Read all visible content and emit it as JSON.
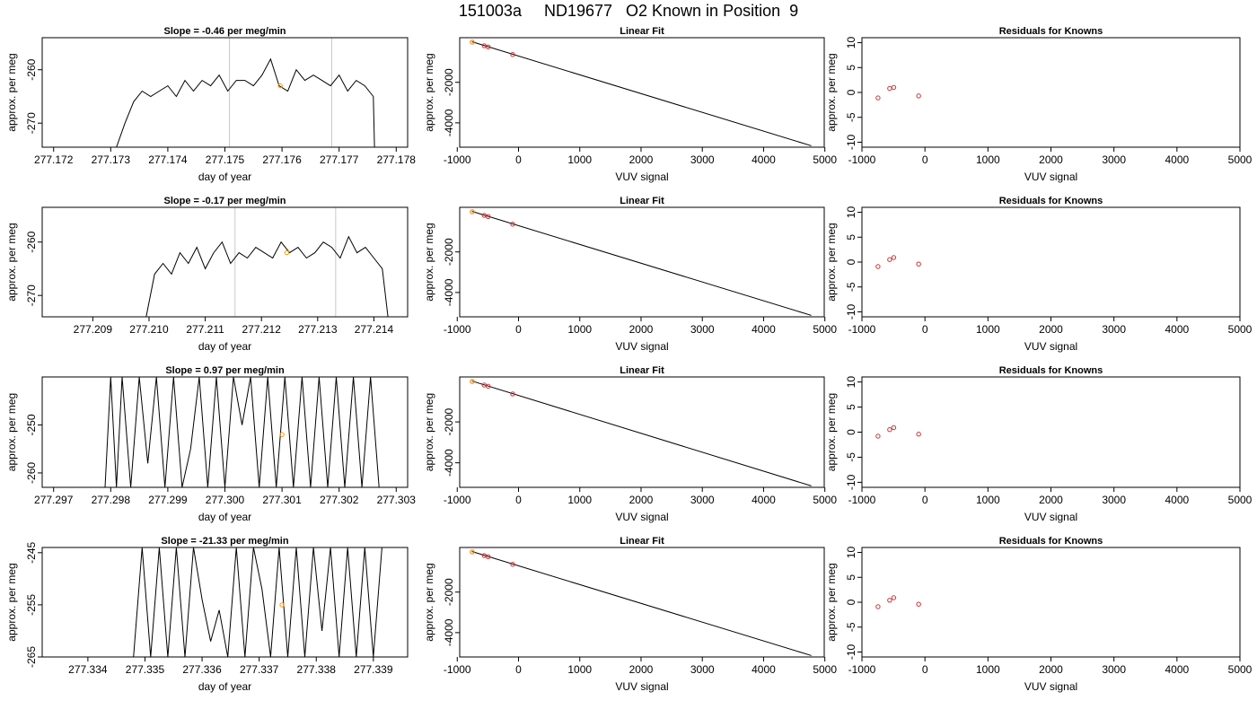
{
  "figure_title": "151003a     ND19677   O2 Known in Position  9",
  "colors": {
    "trace": "#000000",
    "gridline": "#c8c8c8",
    "point": "#cc3333",
    "highlight": "#ff9900"
  },
  "chart_data": [
    {
      "type": "line",
      "row": 1,
      "col": 1,
      "title": "Slope =  -0.46  per meg/min",
      "xlabel": "day of year",
      "ylabel": "approx. per meg",
      "xlim": [
        277.1718,
        277.1782
      ],
      "ylim": [
        -274.5,
        -254
      ],
      "xticks": [
        277.172,
        277.173,
        277.174,
        277.175,
        277.176,
        277.177,
        277.178
      ],
      "xtick_labels": [
        "277.172",
        "277.173",
        "277.174",
        "277.175",
        "277.176",
        "277.177",
        "277.178"
      ],
      "yticks": [
        -260,
        -270
      ],
      "ytick_labels": [
        "-260",
        "-270"
      ],
      "vlines": [
        277.17508,
        277.17687
      ],
      "highlight_point": {
        "x": 277.17597,
        "y": -263
      },
      "series": [
        {
          "x": [
            277.1731,
            277.17325,
            277.1734,
            277.17355,
            277.1737,
            277.17385,
            277.174,
            277.17415,
            277.1743,
            277.17445,
            277.1746,
            277.17475,
            277.1749,
            277.17505,
            277.1752,
            277.17535,
            277.1755,
            277.17565,
            277.1758,
            277.17595,
            277.1761,
            277.17625,
            277.1764,
            277.17655,
            277.1767,
            277.17685,
            277.177,
            277.17715,
            277.1773,
            277.17745,
            277.1776,
            277.17762
          ],
          "y": [
            -274.5,
            -270,
            -266,
            -264,
            -265,
            -264,
            -263,
            -265,
            -262,
            -264,
            -262,
            -263,
            -261,
            -264,
            -262,
            -262,
            -263,
            -261,
            -258,
            -263,
            -264,
            -260,
            -262,
            -261,
            -262,
            -263,
            -261,
            -264,
            -262,
            -263,
            -265,
            -274.5
          ]
        }
      ]
    },
    {
      "type": "line",
      "row": 1,
      "col": 2,
      "title": "Linear Fit",
      "xlabel": "VUV signal",
      "ylabel": "approx. per meg",
      "xlim": [
        -960,
        4990
      ],
      "ylim": [
        -5200,
        200
      ],
      "xticks": [
        -1000,
        0,
        1000,
        2000,
        3000,
        4000,
        5000
      ],
      "xtick_labels": [
        "-1000",
        "0",
        "1000",
        "2000",
        "3000",
        "4000",
        "5000"
      ],
      "yticks": [
        -2000,
        -4000
      ],
      "ytick_labels": [
        "-2000",
        "-4000"
      ],
      "fit_line": {
        "x": [
          -760,
          4780
        ],
        "y": [
          0,
          -5130
        ]
      },
      "points": {
        "x": [
          -755,
          -560,
          -495,
          -95
        ],
        "y": [
          -20,
          -195,
          -255,
          -630
        ]
      },
      "highlight_point": {
        "x": -755,
        "y": -20
      }
    },
    {
      "type": "scatter",
      "row": 1,
      "col": 3,
      "title": "Residuals for Knowns",
      "xlabel": "VUV signal",
      "ylabel": "approx. per meg",
      "xlim": [
        -1000,
        5000
      ],
      "ylim": [
        -11,
        11
      ],
      "xticks": [
        -1000,
        0,
        1000,
        2000,
        3000,
        4000,
        5000
      ],
      "xtick_labels": [
        "-1000",
        "0",
        "1000",
        "2000",
        "3000",
        "4000",
        "5000"
      ],
      "yticks": [
        10,
        5,
        0,
        -5,
        -10
      ],
      "ytick_labels": [
        "10",
        "5",
        "0",
        "-5",
        "-10"
      ],
      "points": {
        "x": [
          -745,
          -560,
          -495,
          -100
        ],
        "y": [
          -1.1,
          0.8,
          1.0,
          -0.7
        ]
      }
    },
    {
      "type": "line",
      "row": 2,
      "col": 1,
      "title": "Slope =  -0.17  per meg/min",
      "xlabel": "day of year",
      "ylabel": "approx. per meg",
      "xlim": [
        277.2081,
        277.2146
      ],
      "ylim": [
        -274,
        -253.5
      ],
      "xticks": [
        277.209,
        277.21,
        277.211,
        277.212,
        277.213,
        277.214
      ],
      "xtick_labels": [
        "277.209",
        "277.210",
        "277.211",
        "277.212",
        "277.213",
        "277.214"
      ],
      "yticks": [
        -260,
        -270
      ],
      "ytick_labels": [
        "-260",
        "-270"
      ],
      "vlines": [
        277.21153,
        277.21332
      ],
      "highlight_point": {
        "x": 277.21245,
        "y": -262
      },
      "series": [
        {
          "x": [
            277.20995,
            277.2101,
            277.21025,
            277.2104,
            277.21055,
            277.2107,
            277.21085,
            277.211,
            277.21115,
            277.2113,
            277.21145,
            277.2116,
            277.21175,
            277.2119,
            277.21205,
            277.2122,
            277.21235,
            277.2125,
            277.21265,
            277.2128,
            277.21295,
            277.2131,
            277.21325,
            277.2134,
            277.21355,
            277.2137,
            277.21385,
            277.214,
            277.21415,
            277.21425
          ],
          "y": [
            -274,
            -266,
            -264,
            -266,
            -262,
            -264,
            -261,
            -265,
            -262,
            -260,
            -264,
            -262,
            -263,
            -261,
            -262,
            -263,
            -260,
            -262,
            -261,
            -263,
            -262,
            -260,
            -261,
            -263,
            -259,
            -262,
            -261,
            -263,
            -265,
            -274
          ]
        }
      ]
    },
    {
      "type": "line",
      "row": 2,
      "col": 2,
      "title": "Linear Fit",
      "xlabel": "VUV signal",
      "ylabel": "approx. per meg",
      "xlim": [
        -960,
        4990
      ],
      "ylim": [
        -5200,
        200
      ],
      "xticks": [
        -1000,
        0,
        1000,
        2000,
        3000,
        4000,
        5000
      ],
      "xtick_labels": [
        "-1000",
        "0",
        "1000",
        "2000",
        "3000",
        "4000",
        "5000"
      ],
      "yticks": [
        -2000,
        -4000
      ],
      "ytick_labels": [
        "-2000",
        "-4000"
      ],
      "fit_line": {
        "x": [
          -760,
          4780
        ],
        "y": [
          0,
          -5130
        ]
      },
      "points": {
        "x": [
          -755,
          -560,
          -495,
          -95
        ],
        "y": [
          -20,
          -195,
          -255,
          -630
        ]
      },
      "highlight_point": {
        "x": -755,
        "y": -20
      }
    },
    {
      "type": "scatter",
      "row": 2,
      "col": 3,
      "title": "Residuals for Knowns",
      "xlabel": "VUV signal",
      "ylabel": "approx. per meg",
      "xlim": [
        -1000,
        5000
      ],
      "ylim": [
        -11,
        11
      ],
      "xticks": [
        -1000,
        0,
        1000,
        2000,
        3000,
        4000,
        5000
      ],
      "xtick_labels": [
        "-1000",
        "0",
        "1000",
        "2000",
        "3000",
        "4000",
        "5000"
      ],
      "yticks": [
        10,
        5,
        0,
        -5,
        -10
      ],
      "ytick_labels": [
        "10",
        "5",
        "0",
        "-5",
        "-10"
      ],
      "points": {
        "x": [
          -745,
          -560,
          -495,
          -100
        ],
        "y": [
          -0.9,
          0.5,
          0.9,
          -0.4
        ]
      }
    },
    {
      "type": "line",
      "row": 3,
      "col": 1,
      "title": "Slope =  0.97  per meg/min",
      "xlabel": "day of year",
      "ylabel": "approx. per meg",
      "xlim": [
        277.2968,
        277.3032
      ],
      "ylim": [
        -263,
        -240
      ],
      "xticks": [
        277.297,
        277.298,
        277.299,
        277.3,
        277.301,
        277.302,
        277.303
      ],
      "xtick_labels": [
        "277.297",
        "277.298",
        "277.299",
        "277.300",
        "277.301",
        "277.302",
        "277.303"
      ],
      "yticks": [
        -250,
        -260
      ],
      "ytick_labels": [
        "-250",
        "-260"
      ],
      "highlight_point": {
        "x": 277.301,
        "y": -252
      },
      "series": [
        {
          "x": [
            277.2979,
            277.298,
            277.2981,
            277.2982,
            277.29835,
            277.2985,
            277.29865,
            277.2988,
            277.29895,
            277.2991,
            277.29925,
            277.2994,
            277.29955,
            277.2997,
            277.29985,
            277.3,
            277.30015,
            277.3003,
            277.30045,
            277.3006,
            277.30075,
            277.3009,
            277.30105,
            277.3012,
            277.30135,
            277.3015,
            277.30165,
            277.3018,
            277.30195,
            277.3021,
            277.30225,
            277.3024,
            277.30255,
            277.3027
          ],
          "y": [
            -263,
            -240,
            -263,
            -240,
            -263,
            -240,
            -258,
            -240,
            -263,
            -240,
            -263,
            -255,
            -240,
            -263,
            -240,
            -263,
            -240,
            -250,
            -240,
            -263,
            -240,
            -263,
            -240,
            -263,
            -240,
            -263,
            -240,
            -263,
            -240,
            -263,
            -240,
            -263,
            -240,
            -263
          ]
        }
      ]
    },
    {
      "type": "line",
      "row": 3,
      "col": 2,
      "title": "Linear Fit",
      "xlabel": "VUV signal",
      "ylabel": "approx. per meg",
      "xlim": [
        -960,
        4990
      ],
      "ylim": [
        -5200,
        200
      ],
      "xticks": [
        -1000,
        0,
        1000,
        2000,
        3000,
        4000,
        5000
      ],
      "xtick_labels": [
        "-1000",
        "0",
        "1000",
        "2000",
        "3000",
        "4000",
        "5000"
      ],
      "yticks": [
        -2000,
        -4000
      ],
      "ytick_labels": [
        "-2000",
        "-4000"
      ],
      "fit_line": {
        "x": [
          -760,
          4780
        ],
        "y": [
          0,
          -5130
        ]
      },
      "points": {
        "x": [
          -755,
          -560,
          -495,
          -95
        ],
        "y": [
          -20,
          -195,
          -255,
          -630
        ]
      },
      "highlight_point": {
        "x": -755,
        "y": -20
      }
    },
    {
      "type": "scatter",
      "row": 3,
      "col": 3,
      "title": "Residuals for Knowns",
      "xlabel": "VUV signal",
      "ylabel": "approx. per meg",
      "xlim": [
        -1000,
        5000
      ],
      "ylim": [
        -11,
        11
      ],
      "xticks": [
        -1000,
        0,
        1000,
        2000,
        3000,
        4000,
        5000
      ],
      "xtick_labels": [
        "-1000",
        "0",
        "1000",
        "2000",
        "3000",
        "4000",
        "5000"
      ],
      "yticks": [
        10,
        5,
        0,
        -5,
        -10
      ],
      "ytick_labels": [
        "10",
        "5",
        "0",
        "-5",
        "-10"
      ],
      "points": {
        "x": [
          -745,
          -560,
          -495,
          -100
        ],
        "y": [
          -0.8,
          0.5,
          0.9,
          -0.4
        ]
      }
    },
    {
      "type": "line",
      "row": 4,
      "col": 1,
      "title": "Slope =  -21.33  per meg/min",
      "xlabel": "day of year",
      "ylabel": "approx. per meg",
      "xlim": [
        277.3332,
        277.3396
      ],
      "ylim": [
        -265,
        -244
      ],
      "xticks": [
        277.334,
        277.335,
        277.336,
        277.337,
        277.338,
        277.339
      ],
      "xtick_labels": [
        "277.334",
        "277.335",
        "277.336",
        "277.337",
        "277.338",
        "277.339"
      ],
      "yticks": [
        -245,
        -255,
        -265
      ],
      "ytick_labels": [
        "-245",
        "-255",
        "-265"
      ],
      "highlight_point": {
        "x": 277.3374,
        "y": -255
      },
      "series": [
        {
          "x": [
            277.3348,
            277.33495,
            277.3351,
            277.33525,
            277.3354,
            277.33555,
            277.3357,
            277.33585,
            277.336,
            277.33615,
            277.3363,
            277.33645,
            277.3366,
            277.33675,
            277.3369,
            277.33705,
            277.3372,
            277.33735,
            277.3375,
            277.33765,
            277.3378,
            277.33795,
            277.3381,
            277.33825,
            277.3384,
            277.33855,
            277.3387,
            277.33885,
            277.339,
            277.33915
          ],
          "y": [
            -265,
            -244,
            -265,
            -244,
            -265,
            -244,
            -265,
            -244,
            -254,
            -262,
            -256,
            -265,
            -244,
            -265,
            -244,
            -252,
            -265,
            -244,
            -265,
            -244,
            -265,
            -244,
            -260,
            -244,
            -265,
            -244,
            -265,
            -244,
            -265,
            -244
          ]
        }
      ]
    },
    {
      "type": "line",
      "row": 4,
      "col": 2,
      "title": "Linear Fit",
      "xlabel": "VUV signal",
      "ylabel": "approx. per meg",
      "xlim": [
        -960,
        4990
      ],
      "ylim": [
        -5200,
        200
      ],
      "xticks": [
        -1000,
        0,
        1000,
        2000,
        3000,
        4000,
        5000
      ],
      "xtick_labels": [
        "-1000",
        "0",
        "1000",
        "2000",
        "3000",
        "4000",
        "5000"
      ],
      "yticks": [
        -2000,
        -4000
      ],
      "ytick_labels": [
        "-2000",
        "-4000"
      ],
      "fit_line": {
        "x": [
          -760,
          4780
        ],
        "y": [
          0,
          -5130
        ]
      },
      "points": {
        "x": [
          -755,
          -560,
          -495,
          -95
        ],
        "y": [
          -20,
          -195,
          -255,
          -630
        ]
      },
      "highlight_point": {
        "x": -755,
        "y": -20
      }
    },
    {
      "type": "scatter",
      "row": 4,
      "col": 3,
      "title": "Residuals for Knowns",
      "xlabel": "VUV signal",
      "ylabel": "approx. per meg",
      "xlim": [
        -1000,
        5000
      ],
      "ylim": [
        -11,
        11
      ],
      "xticks": [
        -1000,
        0,
        1000,
        2000,
        3000,
        4000,
        5000
      ],
      "xtick_labels": [
        "-1000",
        "0",
        "1000",
        "2000",
        "3000",
        "4000",
        "5000"
      ],
      "yticks": [
        10,
        5,
        0,
        -5,
        -10
      ],
      "ytick_labels": [
        "10",
        "5",
        "0",
        "-5",
        "-10"
      ],
      "points": {
        "x": [
          -745,
          -560,
          -495,
          -100
        ],
        "y": [
          -0.9,
          0.4,
          0.9,
          -0.4
        ]
      }
    }
  ]
}
